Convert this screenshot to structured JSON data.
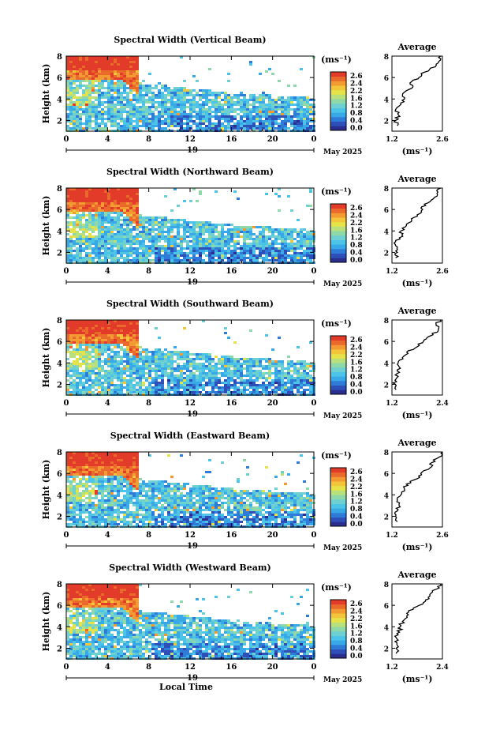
{
  "palette": [
    "#2a2f8f",
    "#2f4fb8",
    "#2f7bd8",
    "#38a8e6",
    "#4cc4e8",
    "#6fd0d2",
    "#8fd8a8",
    "#b8e07c",
    "#e6e24a",
    "#f3c53a",
    "#f39a32",
    "#ea6a2c",
    "#e33b2a"
  ],
  "chart_data": {
    "type": "heatmap",
    "xlabel": "Local Time",
    "date_label": "May 2025",
    "day_label": "19",
    "x_ticks": [
      "0",
      "4",
      "8",
      "12",
      "16",
      "20",
      "0"
    ],
    "xlim": [
      0,
      24
    ],
    "y_ticks": [
      "2",
      "4",
      "6",
      "8"
    ],
    "ylim": [
      1,
      8
    ],
    "ylabel": "Height (km)",
    "colorbar_unit": "(ms⁻¹)",
    "avg_title": "Average",
    "avg_unit": "(ms⁻¹)",
    "panels": [
      {
        "title": "Spectral Width (Vertical Beam)",
        "colorbar_ticks": [
          "2.6",
          "2.4",
          "2.2",
          "1.6",
          "1.2",
          "0.8",
          "0.4",
          "0.0"
        ],
        "avg_xticks": [
          "1.2",
          "2.6"
        ],
        "avg_xlim": [
          1.2,
          2.6
        ],
        "avg_profile": [
          [
            1.35,
            1.5
          ],
          [
            1.3,
            2.0
          ],
          [
            1.38,
            2.5
          ],
          [
            1.3,
            3.0
          ],
          [
            1.45,
            3.5
          ],
          [
            1.55,
            4.0
          ],
          [
            1.5,
            4.5
          ],
          [
            1.75,
            5.0
          ],
          [
            1.7,
            5.5
          ],
          [
            1.95,
            6.0
          ],
          [
            2.1,
            6.5
          ],
          [
            2.4,
            7.0
          ],
          [
            2.5,
            7.5
          ],
          [
            2.55,
            8.0
          ]
        ]
      },
      {
        "title": "Spectral Width (Northward Beam)",
        "colorbar_ticks": [
          "2.6",
          "2.4",
          "2.2",
          "1.6",
          "1.2",
          "0.8",
          "0.4",
          "0.0"
        ],
        "avg_xticks": [
          "1.2",
          "2.6"
        ],
        "avg_xlim": [
          1.2,
          2.6
        ],
        "avg_profile": [
          [
            1.3,
            1.5
          ],
          [
            1.35,
            2.0
          ],
          [
            1.35,
            2.5
          ],
          [
            1.3,
            3.0
          ],
          [
            1.5,
            3.5
          ],
          [
            1.45,
            4.0
          ],
          [
            1.6,
            4.5
          ],
          [
            1.75,
            5.0
          ],
          [
            1.9,
            5.5
          ],
          [
            2.05,
            6.0
          ],
          [
            2.1,
            6.5
          ],
          [
            2.35,
            7.0
          ],
          [
            2.45,
            7.5
          ],
          [
            2.55,
            8.0
          ]
        ]
      },
      {
        "title": "Spectral Width (Southward Beam)",
        "colorbar_ticks": [
          "2.6",
          "2.4",
          "2.2",
          "1.6",
          "1.2",
          "0.8",
          "0.4",
          "0.0"
        ],
        "avg_xticks": [
          "1.2",
          "2.4"
        ],
        "avg_xlim": [
          1.2,
          2.4
        ],
        "avg_profile": [
          [
            1.3,
            1.5
          ],
          [
            1.28,
            2.0
          ],
          [
            1.3,
            2.5
          ],
          [
            1.32,
            3.0
          ],
          [
            1.4,
            3.5
          ],
          [
            1.35,
            4.0
          ],
          [
            1.45,
            4.5
          ],
          [
            1.55,
            5.0
          ],
          [
            1.8,
            5.5
          ],
          [
            1.95,
            6.0
          ],
          [
            2.1,
            6.5
          ],
          [
            2.3,
            7.0
          ],
          [
            2.25,
            7.5
          ],
          [
            2.35,
            8.0
          ]
        ]
      },
      {
        "title": "Spectral Width (Eastward Beam)",
        "colorbar_ticks": [
          "2.6",
          "2.4",
          "2.2",
          "1.6",
          "1.2",
          "0.8",
          "0.4",
          "0.0"
        ],
        "avg_xticks": [
          "1.2",
          "2.6"
        ],
        "avg_xlim": [
          1.2,
          2.6
        ],
        "avg_profile": [
          [
            1.35,
            1.5
          ],
          [
            1.3,
            2.0
          ],
          [
            1.35,
            2.5
          ],
          [
            1.4,
            3.0
          ],
          [
            1.35,
            3.5
          ],
          [
            1.45,
            4.0
          ],
          [
            1.55,
            4.5
          ],
          [
            1.6,
            5.0
          ],
          [
            1.9,
            5.5
          ],
          [
            2.0,
            6.0
          ],
          [
            2.25,
            6.5
          ],
          [
            2.3,
            7.0
          ],
          [
            2.5,
            7.5
          ],
          [
            2.6,
            8.0
          ]
        ]
      },
      {
        "title": "Spectral Width (Westward Beam)",
        "colorbar_ticks": [
          "2.6",
          "2.4",
          "2.2",
          "1.6",
          "1.2",
          "0.8",
          "0.4",
          "0.0"
        ],
        "avg_xticks": [
          "1.2",
          "2.4"
        ],
        "avg_xlim": [
          1.2,
          2.4
        ],
        "avg_profile": [
          [
            1.3,
            1.5
          ],
          [
            1.3,
            2.0
          ],
          [
            1.32,
            2.5
          ],
          [
            1.3,
            3.0
          ],
          [
            1.38,
            3.5
          ],
          [
            1.4,
            4.0
          ],
          [
            1.45,
            4.5
          ],
          [
            1.55,
            5.0
          ],
          [
            1.6,
            5.5
          ],
          [
            1.85,
            6.0
          ],
          [
            2.0,
            6.5
          ],
          [
            2.1,
            7.0
          ],
          [
            2.25,
            7.5
          ],
          [
            2.35,
            8.0
          ]
        ]
      }
    ]
  }
}
